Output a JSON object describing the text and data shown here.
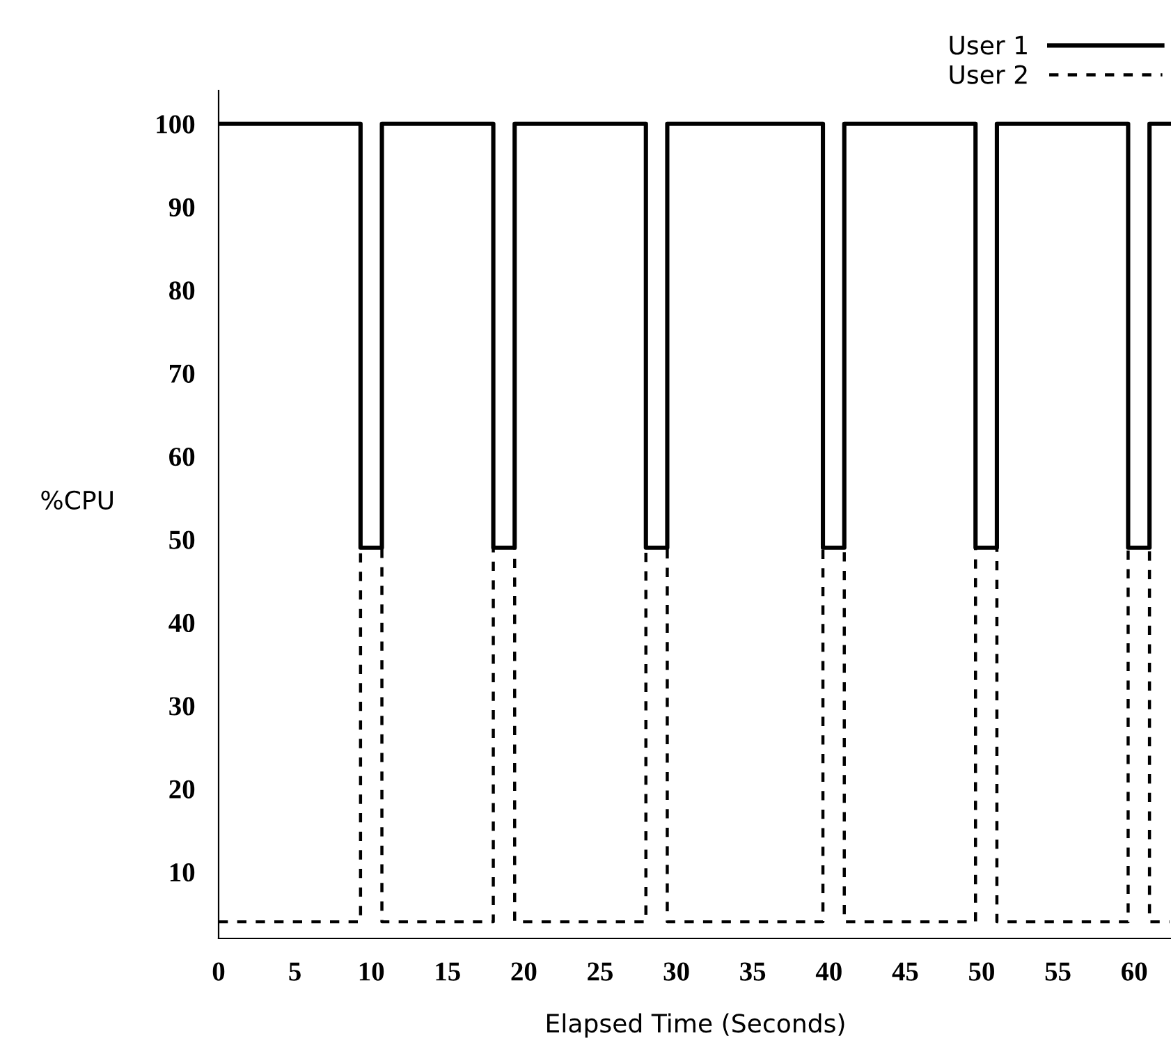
{
  "chart_data": {
    "type": "step",
    "xlabel": "Elapsed Time (Seconds)",
    "ylabel": "%CPU",
    "xlim": [
      0,
      62.5
    ],
    "ylim": [
      2,
      104
    ],
    "xticks": [
      0,
      5,
      10,
      15,
      20,
      25,
      30,
      35,
      40,
      45,
      50,
      55,
      60
    ],
    "yticks": [
      10,
      20,
      30,
      40,
      50,
      60,
      70,
      80,
      90,
      100
    ],
    "legend": "top right",
    "grid": false,
    "series": [
      {
        "name": "User 1",
        "color": "#000000",
        "line_style": "solid",
        "x": [
          0,
          9.3,
          10.7,
          18.0,
          19.4,
          28.0,
          29.4,
          39.6,
          41.0,
          49.6,
          51.0,
          59.6,
          61.0,
          62.3
        ],
        "values": [
          100,
          49,
          100,
          49,
          100,
          49,
          100,
          49,
          100,
          49,
          100,
          49,
          100,
          100
        ]
      },
      {
        "name": "User 2",
        "color": "#000000",
        "line_style": "dashed",
        "x": [
          0,
          9.3,
          10.7,
          18.0,
          19.4,
          28.0,
          29.4,
          39.6,
          41.0,
          49.6,
          51.0,
          59.6,
          61.0,
          62.3
        ],
        "values": [
          4,
          49,
          4,
          49,
          4,
          49,
          4,
          49,
          4,
          49,
          4,
          49,
          4,
          4
        ]
      }
    ]
  }
}
